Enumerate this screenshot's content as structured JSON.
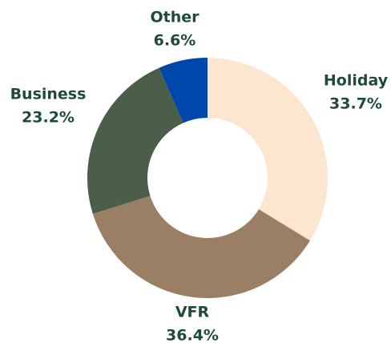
{
  "chart_data": {
    "type": "donut",
    "categories": [
      "Holiday",
      "VFR",
      "Business",
      "Other"
    ],
    "values": [
      33.7,
      36.4,
      23.2,
      6.6
    ],
    "value_labels": [
      "33.7%",
      "36.4%",
      "23.2%",
      "6.6%"
    ],
    "colors": [
      "#fde6cf",
      "#9a7f64",
      "#4a5e4a",
      "#0047ab"
    ]
  }
}
